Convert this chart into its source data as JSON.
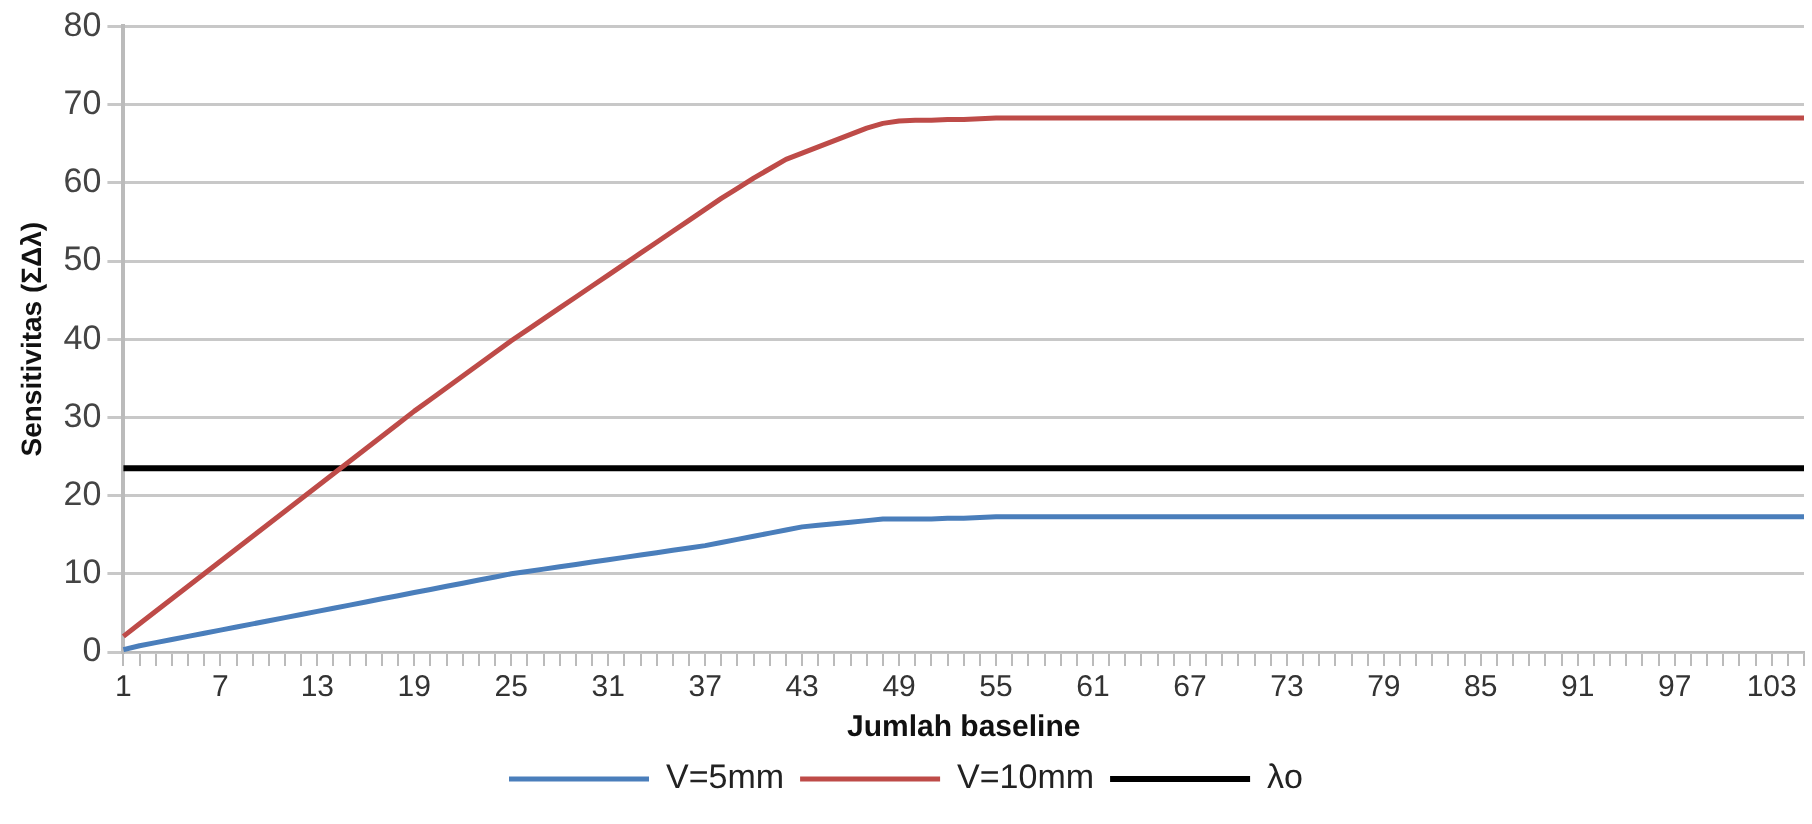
{
  "chart_data": {
    "type": "line",
    "xlabel": "Jumlah baseline",
    "ylabel": "Sensitivitas (ΣΔλ)",
    "categories": [
      "1",
      null,
      null,
      null,
      null,
      null,
      "7",
      null,
      null,
      null,
      null,
      null,
      "13",
      null,
      null,
      null,
      null,
      null,
      "19",
      null,
      null,
      null,
      null,
      null,
      "25",
      null,
      null,
      null,
      null,
      null,
      "31",
      null,
      null,
      null,
      null,
      null,
      "37",
      null,
      null,
      null,
      null,
      null,
      "43",
      null,
      null,
      null,
      null,
      null,
      "49",
      null,
      null,
      null,
      null,
      null,
      "55",
      null,
      null,
      null,
      null,
      null,
      "61",
      null,
      null,
      null,
      null,
      null,
      "67",
      null,
      null,
      null,
      null,
      null,
      "73",
      null,
      null,
      null,
      null,
      null,
      "79",
      null,
      null,
      null,
      null,
      null,
      "85",
      null,
      null,
      null,
      null,
      null,
      "91",
      null,
      null,
      null,
      null,
      null,
      "97",
      null,
      null,
      null,
      null,
      null,
      "103",
      null,
      null
    ],
    "series": [
      {
        "name": "V=5mm",
        "color": "#4a7ebb",
        "values": [
          0.3,
          0.8,
          1.2,
          1.6,
          2,
          2.4,
          2.8,
          3.2,
          3.6,
          4,
          4.4,
          4.8,
          5.2,
          5.6,
          6,
          6.4,
          6.8,
          7.2,
          7.6,
          8,
          8.4,
          8.8,
          9.2,
          9.6,
          10,
          10.3,
          10.6,
          10.9,
          11.2,
          11.5,
          11.8,
          12.1,
          12.4,
          12.7,
          13,
          13.3,
          13.6,
          14,
          14.4,
          14.8,
          15.2,
          15.6,
          16,
          16.2,
          16.4,
          16.6,
          16.8,
          17,
          17,
          17,
          17,
          17.1,
          17.1,
          17.2,
          17.3,
          17.3,
          17.3,
          17.3,
          17.3,
          17.3,
          17.3,
          17.3,
          17.3,
          17.3,
          17.3,
          17.3,
          17.3,
          17.3,
          17.3,
          17.3,
          17.3,
          17.3,
          17.3,
          17.3,
          17.3,
          17.3,
          17.3,
          17.3,
          17.3,
          17.3,
          17.3,
          17.3,
          17.3,
          17.3,
          17.3,
          17.3,
          17.3,
          17.3,
          17.3,
          17.3,
          17.3,
          17.3,
          17.3,
          17.3,
          17.3,
          17.3,
          17.3,
          17.3,
          17.3,
          17.3,
          17.3,
          17.3,
          17.3,
          17.3,
          17.3
        ]
      },
      {
        "name": "V=10mm",
        "color": "#be4b48",
        "values": [
          2,
          3.6,
          5.2,
          6.8,
          8.4,
          10,
          11.6,
          13.2,
          14.8,
          16.4,
          18,
          19.6,
          21.2,
          22.8,
          24.4,
          26,
          27.6,
          29.2,
          30.8,
          32.3,
          33.8,
          35.3,
          36.8,
          38.3,
          39.8,
          41.2,
          42.6,
          44,
          45.4,
          46.8,
          48.2,
          49.6,
          51,
          52.4,
          53.8,
          55.2,
          56.6,
          58,
          59.3,
          60.6,
          61.8,
          63,
          63.8,
          64.6,
          65.4,
          66.2,
          67,
          67.6,
          67.9,
          68,
          68,
          68.1,
          68.1,
          68.2,
          68.3,
          68.3,
          68.3,
          68.3,
          68.3,
          68.3,
          68.3,
          68.3,
          68.3,
          68.3,
          68.3,
          68.3,
          68.3,
          68.3,
          68.3,
          68.3,
          68.3,
          68.3,
          68.3,
          68.3,
          68.3,
          68.3,
          68.3,
          68.3,
          68.3,
          68.3,
          68.3,
          68.3,
          68.3,
          68.3,
          68.3,
          68.3,
          68.3,
          68.3,
          68.3,
          68.3,
          68.3,
          68.3,
          68.3,
          68.3,
          68.3,
          68.3,
          68.3,
          68.3,
          68.3,
          68.3,
          68.3,
          68.3,
          68.3,
          68.3,
          68.3
        ]
      },
      {
        "name": "λo",
        "color": "#000000",
        "values": [
          23.5,
          23.5,
          23.5,
          23.5,
          23.5,
          23.5,
          23.5,
          23.5,
          23.5,
          23.5,
          23.5,
          23.5,
          23.5,
          23.5,
          23.5,
          23.5,
          23.5,
          23.5,
          23.5,
          23.5,
          23.5,
          23.5,
          23.5,
          23.5,
          23.5,
          23.5,
          23.5,
          23.5,
          23.5,
          23.5,
          23.5,
          23.5,
          23.5,
          23.5,
          23.5,
          23.5,
          23.5,
          23.5,
          23.5,
          23.5,
          23.5,
          23.5,
          23.5,
          23.5,
          23.5,
          23.5,
          23.5,
          23.5,
          23.5,
          23.5,
          23.5,
          23.5,
          23.5,
          23.5,
          23.5,
          23.5,
          23.5,
          23.5,
          23.5,
          23.5,
          23.5,
          23.5,
          23.5,
          23.5,
          23.5,
          23.5,
          23.5,
          23.5,
          23.5,
          23.5,
          23.5,
          23.5,
          23.5,
          23.5,
          23.5,
          23.5,
          23.5,
          23.5,
          23.5,
          23.5,
          23.5,
          23.5,
          23.5,
          23.5,
          23.5,
          23.5,
          23.5,
          23.5,
          23.5,
          23.5,
          23.5,
          23.5,
          23.5,
          23.5,
          23.5,
          23.5,
          23.5,
          23.5,
          23.5,
          23.5,
          23.5,
          23.5,
          23.5,
          23.5,
          23.5
        ]
      }
    ],
    "ylim": [
      0,
      80
    ],
    "yticks": [
      0,
      10,
      20,
      30,
      40,
      50,
      60,
      70,
      80
    ],
    "grid": "y",
    "legend": "bottom",
    "marker": "none",
    "line_style": "solid"
  }
}
